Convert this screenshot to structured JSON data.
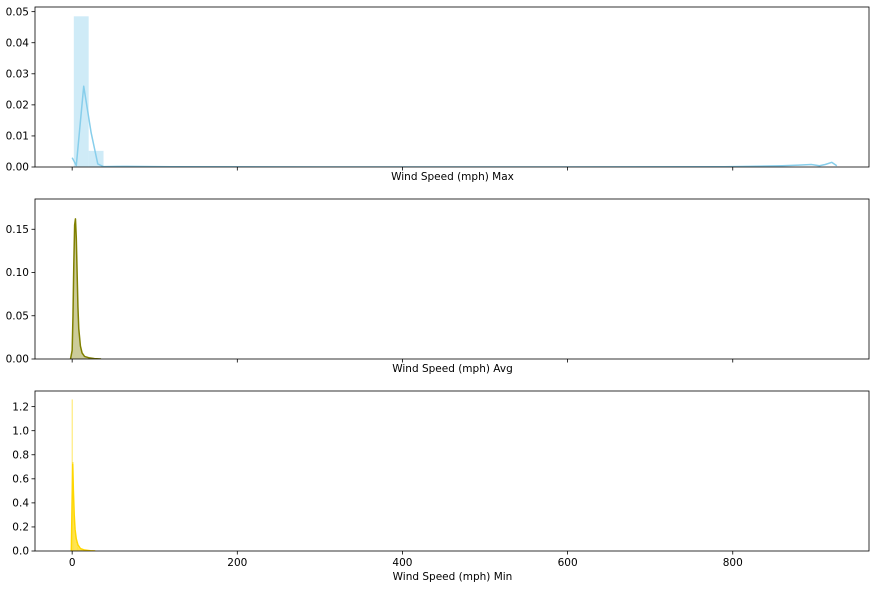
{
  "chart_data": [
    {
      "type": "histogram_kde",
      "xlabel": "Wind Speed (mph) Max",
      "ylabel": "",
      "title": "",
      "color": "#87ceeb",
      "xlim": [
        -45,
        965
      ],
      "ylim": [
        0,
        0.0515
      ],
      "xticks": [
        0,
        200,
        400,
        600,
        800
      ],
      "show_xtick_labels": false,
      "yticks": [
        0.0,
        0.01,
        0.02,
        0.03,
        0.04,
        0.05
      ],
      "ytick_labels": [
        "0.00",
        "0.01",
        "0.02",
        "0.03",
        "0.04",
        "0.05"
      ],
      "bins": [
        {
          "x0": 2,
          "x1": 20,
          "y": 0.0485
        },
        {
          "x0": 20,
          "x1": 38,
          "y": 0.0052
        },
        {
          "x0": 38,
          "x1": 56,
          "y": 0.0004
        }
      ],
      "kde": {
        "x": [
          0,
          5,
          14,
          23,
          31,
          38,
          60,
          120,
          300,
          600,
          790,
          820,
          860,
          880,
          895,
          905,
          912,
          920,
          926
        ],
        "y": [
          0.003,
          0.0005,
          0.026,
          0.011,
          0.001,
          0.0001,
          0.0002,
          0.0001,
          0.0,
          0.0,
          0.0001,
          0.0002,
          0.0004,
          0.0006,
          0.0008,
          0.0004,
          0.0008,
          0.0015,
          0.0004
        ]
      }
    },
    {
      "type": "kde",
      "xlabel": "Wind Speed (mph) Avg",
      "ylabel": "",
      "title": "",
      "color": "#808000",
      "xlim": [
        -45,
        965
      ],
      "ylim": [
        0,
        0.185
      ],
      "xticks": [
        0,
        200,
        400,
        600,
        800
      ],
      "show_xtick_labels": false,
      "yticks": [
        0.0,
        0.05,
        0.1,
        0.15
      ],
      "ytick_labels": [
        "0.00",
        "0.05",
        "0.10",
        "0.15"
      ],
      "kde": {
        "x": [
          -2,
          0,
          1,
          2,
          3,
          4,
          5,
          6,
          7,
          8,
          10,
          12,
          15,
          20,
          27,
          35
        ],
        "y": [
          0.0,
          0.01,
          0.05,
          0.11,
          0.155,
          0.162,
          0.14,
          0.1,
          0.06,
          0.035,
          0.015,
          0.007,
          0.003,
          0.0015,
          0.0005,
          0.0
        ]
      },
      "fill": true
    },
    {
      "type": "histogram",
      "xlabel": "Wind Speed (mph) Min",
      "ylabel": "",
      "title": "",
      "color": "#ffd700",
      "xlim": [
        -45,
        965
      ],
      "ylim": [
        0,
        1.33
      ],
      "xticks": [
        0,
        200,
        400,
        600,
        800
      ],
      "xtick_labels": [
        "0",
        "200",
        "400",
        "600",
        "800"
      ],
      "show_xtick_labels": true,
      "yticks": [
        0.0,
        0.2,
        0.4,
        0.6,
        0.8,
        1.0,
        1.2
      ],
      "ytick_labels": [
        "0.0",
        "0.2",
        "0.4",
        "0.6",
        "0.8",
        "1.0",
        "1.2"
      ],
      "bins": [
        {
          "x0": -0.5,
          "x1": 0.5,
          "y": 1.26
        },
        {
          "x0": 0.5,
          "x1": 1.5,
          "y": 0.74
        },
        {
          "x0": 1.5,
          "x1": 2.5,
          "y": 0.33
        },
        {
          "x0": 2.5,
          "x1": 3.5,
          "y": 0.2
        },
        {
          "x0": 3.5,
          "x1": 4.5,
          "y": 0.13
        },
        {
          "x0": 4.5,
          "x1": 5.5,
          "y": 0.08
        },
        {
          "x0": 5.5,
          "x1": 6.5,
          "y": 0.06
        },
        {
          "x0": 6.5,
          "x1": 7.5,
          "y": 0.04
        },
        {
          "x0": 7.5,
          "x1": 8.5,
          "y": 0.03
        },
        {
          "x0": 8.5,
          "x1": 10,
          "y": 0.02
        },
        {
          "x0": 10,
          "x1": 13,
          "y": 0.012
        },
        {
          "x0": 13,
          "x1": 17,
          "y": 0.006
        },
        {
          "x0": 17,
          "x1": 22,
          "y": 0.003
        }
      ],
      "kde": {
        "x": [
          -1,
          0,
          0.7,
          1.5,
          2.5,
          3.5,
          5,
          7,
          10,
          15,
          22,
          28
        ],
        "y": [
          0.0,
          0.45,
          0.72,
          0.5,
          0.3,
          0.18,
          0.1,
          0.05,
          0.02,
          0.008,
          0.002,
          0.0
        ]
      }
    }
  ]
}
